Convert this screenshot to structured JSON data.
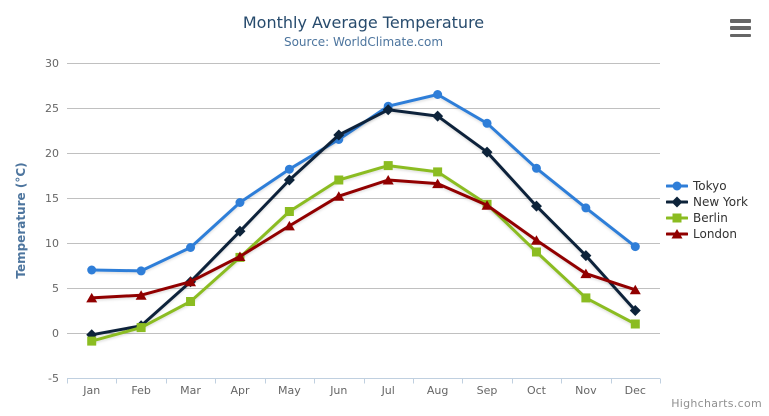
{
  "header": {
    "title": "Monthly Average Temperature",
    "subtitle": "Source: WorldClimate.com"
  },
  "toolbar": {
    "export_icon": "hamburger-icon"
  },
  "credits": {
    "label": "Highcharts.com"
  },
  "colors": {
    "title": "#274b6d",
    "subtitle": "#4d759e",
    "axis_title": "#4d759e",
    "axis_label": "#666666",
    "legend_text": "#333333",
    "grid": "#c0c0c0",
    "axis_line": "#c0d0e0",
    "credits": "#909090",
    "hamburger": "#666666",
    "background": "#ffffff"
  },
  "chart_data": {
    "type": "line",
    "title": "Monthly Average Temperature",
    "subtitle": "Source: WorldClimate.com",
    "categories": [
      "Jan",
      "Feb",
      "Mar",
      "Apr",
      "May",
      "Jun",
      "Jul",
      "Aug",
      "Sep",
      "Oct",
      "Nov",
      "Dec"
    ],
    "series": [
      {
        "name": "Tokyo",
        "color": "#2f7ed8",
        "marker": "circle",
        "values": [
          7.0,
          6.9,
          9.5,
          14.5,
          18.2,
          21.5,
          25.2,
          26.5,
          23.3,
          18.3,
          13.9,
          9.6
        ]
      },
      {
        "name": "New York",
        "color": "#0d233a",
        "marker": "diamond",
        "values": [
          -0.2,
          0.8,
          5.7,
          11.3,
          17.0,
          22.0,
          24.8,
          24.1,
          20.1,
          14.1,
          8.6,
          2.5
        ]
      },
      {
        "name": "Berlin",
        "color": "#8bbc21",
        "marker": "square",
        "values": [
          -0.9,
          0.6,
          3.5,
          8.4,
          13.5,
          17.0,
          18.6,
          17.9,
          14.3,
          9.0,
          3.9,
          1.0
        ]
      },
      {
        "name": "London",
        "color": "#910000",
        "marker": "triangle",
        "values": [
          3.9,
          4.2,
          5.7,
          8.5,
          11.9,
          15.2,
          17.0,
          16.6,
          14.2,
          10.3,
          6.6,
          4.8
        ]
      }
    ],
    "xlabel": "",
    "ylabel": "Temperature (°C)",
    "ylim": [
      -5,
      30
    ],
    "yticks": [
      -5,
      0,
      5,
      10,
      15,
      20,
      25,
      30
    ],
    "grid": true,
    "legend_position": "right"
  }
}
